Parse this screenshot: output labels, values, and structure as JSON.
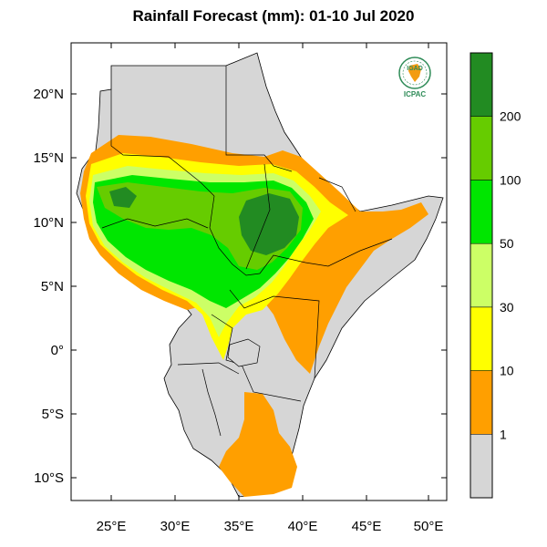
{
  "title": "Rainfall Forecast (mm): 01-10 Jul 2020",
  "logo": {
    "text_top": "IGAD",
    "text_bottom": "ICPAC"
  },
  "axes": {
    "lat_labels": [
      "20°N",
      "15°N",
      "10°N",
      "5°N",
      "0°",
      "5°S",
      "10°S"
    ],
    "lon_labels": [
      "25°E",
      "30°E",
      "35°E",
      "40°E",
      "45°E",
      "50°E"
    ]
  },
  "colorbar": {
    "classes": [
      {
        "label": "",
        "color": "#d6d6d6"
      },
      {
        "label": "1",
        "color": "#ff9f00"
      },
      {
        "label": "10",
        "color": "#ffff00"
      },
      {
        "label": "30",
        "color": "#ccff66"
      },
      {
        "label": "50",
        "color": "#00e600"
      },
      {
        "label": "100",
        "color": "#66cc00"
      },
      {
        "label": "200",
        "color": "#228b22"
      }
    ]
  },
  "colors": {
    "land": "#d6d6d6",
    "lt1": "#ff9f00",
    "lt10": "#ffff00",
    "lt30": "#ccff66",
    "lt50": "#00e600",
    "lt100": "#66cc00",
    "ge200": "#228b22",
    "logo_green": "#2e8b57",
    "logo_orange": "#f39c12"
  }
}
